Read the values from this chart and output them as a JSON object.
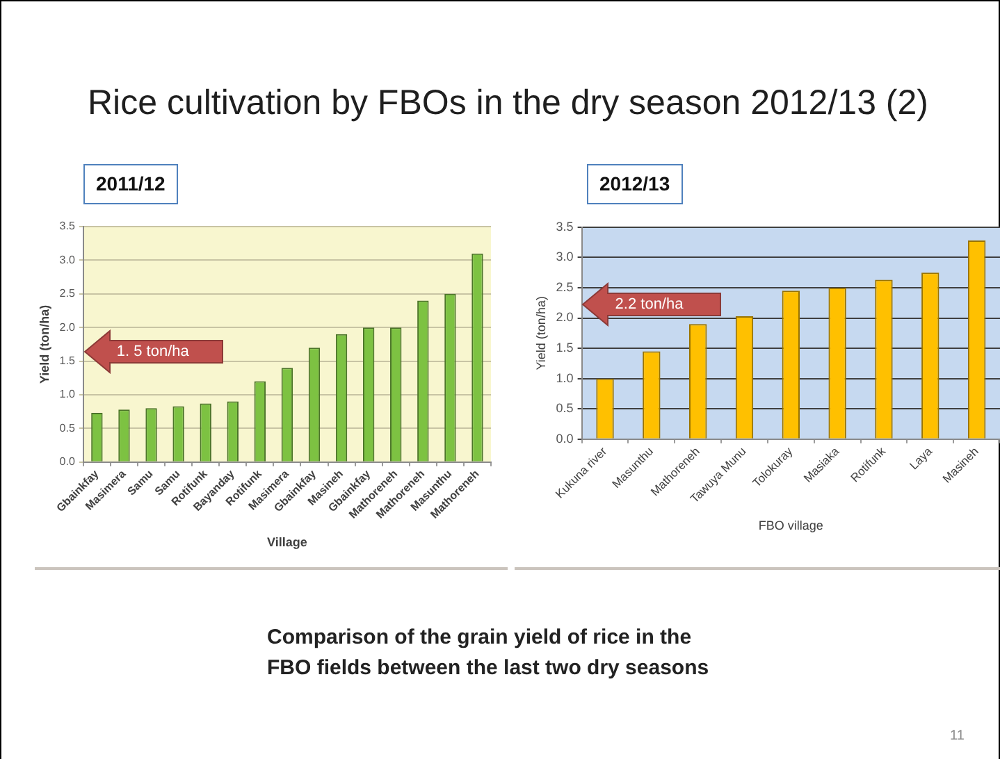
{
  "chart_data": [
    {
      "type": "other",
      "title": "Rice cultivation by FBOs in the dry season 2012/13 (2)"
    },
    {
      "type": "bar",
      "title": "2011/12",
      "xlabel": "Village",
      "ylabel": "Yield (ton/ha)",
      "categories": [
        "Gbainkfay",
        "Masimera",
        "Samu",
        "Samu",
        "Rotifunk",
        "Bayanday",
        "Rotifunk",
        "Masimera",
        "Gbainkfay",
        "Masineh",
        "Gbainkfay",
        "Mathoreneh",
        "Mathoreneh",
        "Masunthu",
        "Mathoreneh"
      ],
      "values": [
        0.73,
        0.78,
        0.8,
        0.83,
        0.87,
        0.9,
        1.2,
        1.4,
        1.7,
        1.9,
        2.0,
        2.0,
        2.4,
        2.5,
        3.1
      ],
      "color": "#7dc242",
      "ylim": [
        0,
        3.5
      ],
      "yticks": [
        {
          "value": 0,
          "label": "0.0"
        },
        0.5,
        {
          "value": 1,
          "label": "1.0"
        },
        1.5,
        {
          "value": 2,
          "label": "2.0"
        },
        2.5,
        {
          "value": 3,
          "label": "3.0"
        },
        3.5
      ],
      "grid": "y",
      "annotations": [
        "1. 5 ton/ha"
      ]
    },
    {
      "type": "bar",
      "title": "2012/13",
      "xlabel": "FBO village",
      "ylabel": "Yield (ton/ha)",
      "categories": [
        "Kukuna river",
        "Masunthu",
        "Mathoreneh",
        "Tawuya Munu",
        "Tolokuray",
        "Masiaka",
        "Rotifunk",
        "Laya",
        "Masineh"
      ],
      "values": [
        1.0,
        1.45,
        1.9,
        2.03,
        2.45,
        2.5,
        2.63,
        2.75,
        3.28
      ],
      "color": "#ffc000",
      "ylim": [
        0,
        3.5
      ],
      "yticks": [
        {
          "value": 0,
          "label": "0.0"
        },
        0.5,
        {
          "value": 1,
          "label": "1.0"
        },
        1.5,
        {
          "value": 2,
          "label": "2.0"
        },
        2.5,
        {
          "value": 3,
          "label": "3.0"
        },
        3.5
      ],
      "grid": "y",
      "annotations": [
        "2.2 ton/ha"
      ]
    },
    {
      "type": "other",
      "annotations": [
        "Comparison of the grain yield of rice in the FBO fields between the last two dry seasons",
        "11"
      ]
    }
  ]
}
